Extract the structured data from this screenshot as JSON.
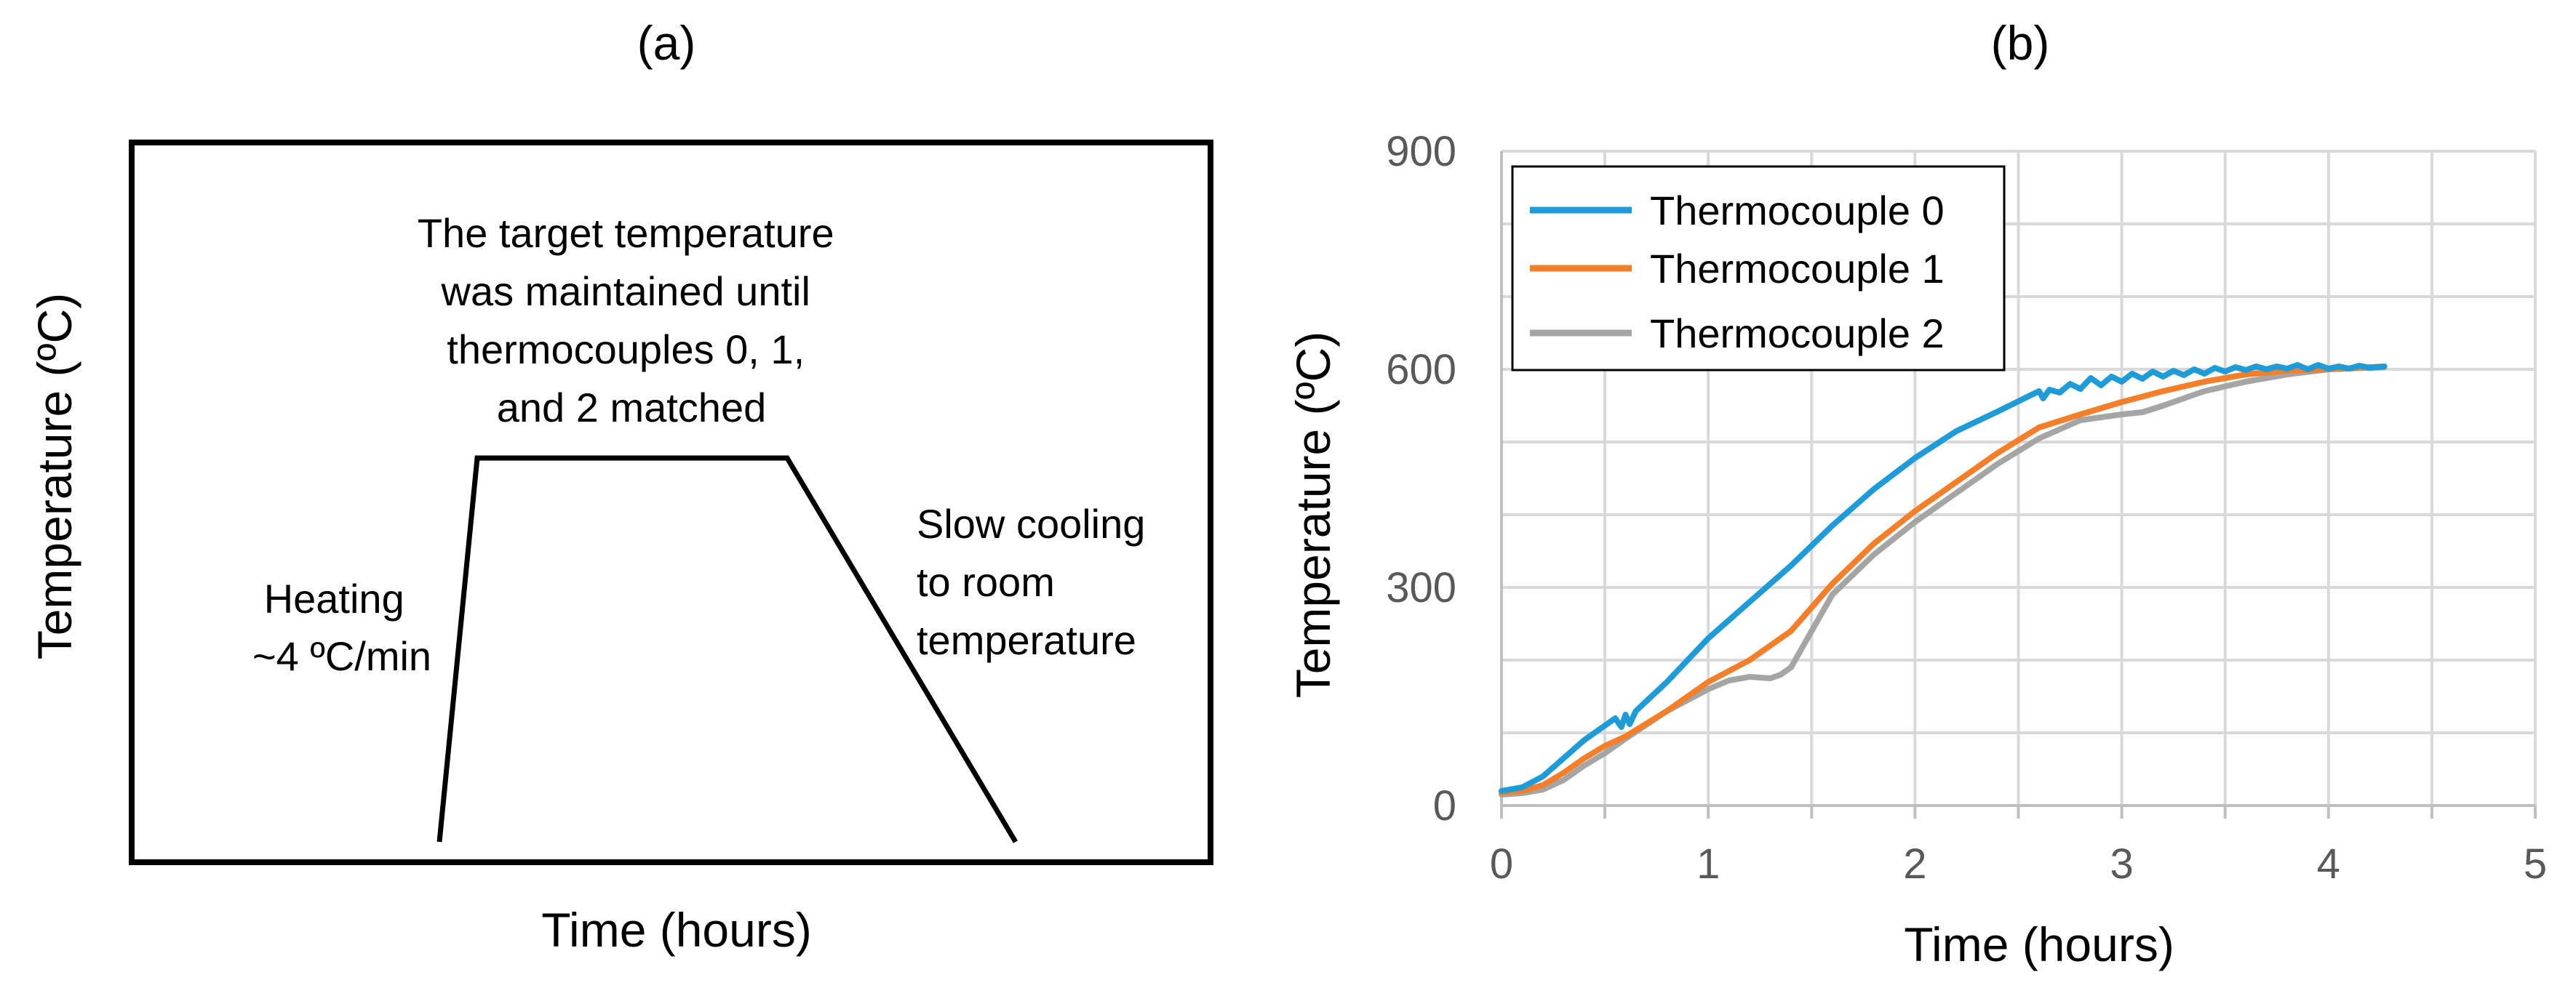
{
  "chart_data": [
    {
      "type": "diagram-line",
      "panel_label": "(a)",
      "xlabel": "Time (hours)",
      "ylabel": "Temperature (ºC)",
      "annotations": {
        "hold_lines": [
          "The target temperature",
          "was maintained until",
          "thermocouples 0, 1,",
          "and 2 matched"
        ],
        "heating_lines": [
          "Heating",
          "~4 ºC/min"
        ],
        "cooling_lines": [
          "Slow cooling",
          "to room",
          "temperature"
        ]
      },
      "stages": [
        "heating",
        "hold",
        "slow cooling"
      ],
      "color": "#000000"
    },
    {
      "type": "line",
      "panel_label": "(b)",
      "xlabel": "Time (hours)",
      "ylabel": "Temperature (ºC)",
      "xlim": [
        0,
        5
      ],
      "ylim": [
        0,
        900
      ],
      "xticks": [
        0,
        1,
        2,
        3,
        4,
        5
      ],
      "yticks": [
        0,
        300,
        600,
        900
      ],
      "grid": true,
      "legend_position": "top-left",
      "series": [
        {
          "name": "Thermocouple 0",
          "color": "#1f9bd7",
          "x": [
            0,
            0.1,
            0.2,
            0.3,
            0.4,
            0.5,
            0.55,
            0.58,
            0.6,
            0.62,
            0.65,
            0.8,
            1.0,
            1.2,
            1.4,
            1.6,
            1.8,
            2.0,
            2.2,
            2.4,
            2.6,
            2.62,
            2.65,
            2.7,
            2.75,
            2.8,
            2.85,
            2.9,
            2.95,
            3.0,
            3.05,
            3.1,
            3.15,
            3.2,
            3.25,
            3.3,
            3.35,
            3.4,
            3.45,
            3.5,
            3.55,
            3.6,
            3.65,
            3.7,
            3.75,
            3.8,
            3.85,
            3.9,
            3.95,
            4.0,
            4.05,
            4.1,
            4.15,
            4.2,
            4.27
          ],
          "values": [
            20,
            25,
            40,
            65,
            90,
            110,
            120,
            108,
            125,
            112,
            130,
            170,
            230,
            280,
            330,
            385,
            435,
            478,
            515,
            542,
            570,
            560,
            572,
            568,
            580,
            573,
            588,
            578,
            590,
            583,
            594,
            587,
            597,
            590,
            598,
            592,
            600,
            594,
            602,
            597,
            603,
            599,
            604,
            600,
            604,
            601,
            606,
            600,
            606,
            601,
            604,
            601,
            605,
            602,
            604
          ]
        },
        {
          "name": "Thermocouple 1",
          "color": "#f47f2a",
          "x": [
            0,
            0.1,
            0.2,
            0.3,
            0.4,
            0.5,
            0.6,
            0.8,
            1.0,
            1.2,
            1.4,
            1.6,
            1.8,
            2.0,
            2.2,
            2.4,
            2.6,
            2.8,
            3.0,
            3.2,
            3.4,
            3.6,
            3.8,
            4.0,
            4.27
          ],
          "values": [
            18,
            20,
            28,
            45,
            65,
            82,
            95,
            130,
            170,
            200,
            240,
            305,
            360,
            405,
            445,
            485,
            520,
            538,
            555,
            570,
            583,
            593,
            598,
            600,
            604
          ]
        },
        {
          "name": "Thermocouple 2",
          "color": "#a5a5a5",
          "x": [
            0,
            0.1,
            0.2,
            0.3,
            0.4,
            0.5,
            0.6,
            0.8,
            1.0,
            1.1,
            1.2,
            1.3,
            1.35,
            1.4,
            1.5,
            1.6,
            1.8,
            2.0,
            2.2,
            2.4,
            2.6,
            2.8,
            3.0,
            3.1,
            3.2,
            3.4,
            3.6,
            3.8,
            4.0,
            4.27
          ],
          "values": [
            15,
            17,
            22,
            35,
            55,
            72,
            92,
            130,
            160,
            172,
            177,
            175,
            180,
            190,
            240,
            290,
            345,
            390,
            430,
            470,
            505,
            530,
            538,
            541,
            550,
            570,
            583,
            593,
            600,
            603
          ]
        }
      ]
    }
  ]
}
